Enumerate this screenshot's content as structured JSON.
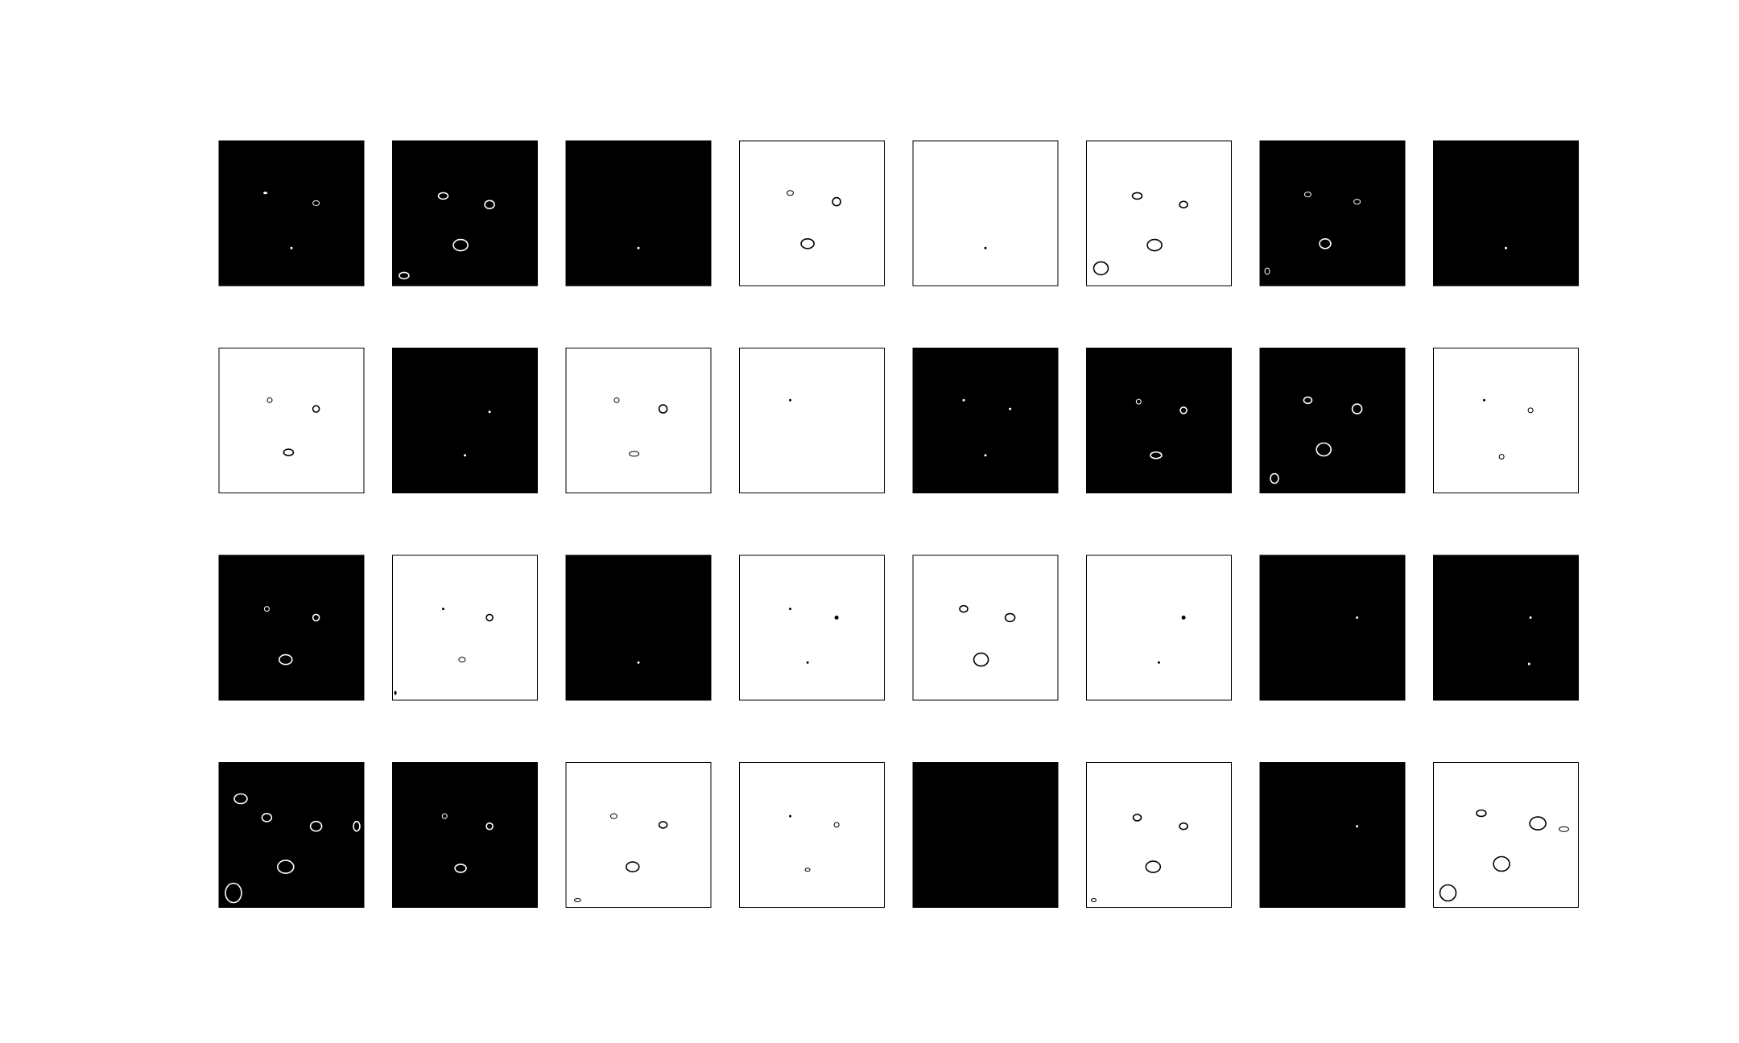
{
  "figure": {
    "rows": 4,
    "cols": 8,
    "colors": {
      "background": "#ffffff",
      "dark_tile": "#000000",
      "light_tile": "#ffffff",
      "frame": "#000000"
    },
    "panels": [
      {
        "bg": "dark",
        "marks": [
          [
            0.32,
            0.36,
            2,
            1
          ],
          [
            0.67,
            0.43,
            4,
            3
          ],
          [
            0.5,
            0.74,
            1,
            1
          ]
        ]
      },
      {
        "bg": "dark",
        "marks": [
          [
            0.35,
            0.38,
            6,
            4
          ],
          [
            0.67,
            0.44,
            6,
            5
          ],
          [
            0.47,
            0.72,
            9,
            7
          ],
          [
            0.08,
            0.93,
            6,
            4
          ]
        ]
      },
      {
        "bg": "dark",
        "marks": [
          [
            0.5,
            0.74,
            1,
            1
          ]
        ]
      },
      {
        "bg": "light",
        "marks": [
          [
            0.35,
            0.36,
            4,
            3
          ],
          [
            0.67,
            0.42,
            5,
            5
          ],
          [
            0.47,
            0.71,
            8,
            6
          ]
        ]
      },
      {
        "bg": "light",
        "marks": [
          [
            0.5,
            0.74,
            1,
            1
          ]
        ]
      },
      {
        "bg": "light",
        "marks": [
          [
            0.35,
            0.38,
            6,
            4
          ],
          [
            0.67,
            0.44,
            5,
            4
          ],
          [
            0.47,
            0.72,
            9,
            7
          ],
          [
            0.1,
            0.88,
            9,
            8
          ]
        ]
      },
      {
        "bg": "dark",
        "marks": [
          [
            0.33,
            0.37,
            4,
            3
          ],
          [
            0.67,
            0.42,
            4,
            3
          ],
          [
            0.45,
            0.71,
            7,
            6
          ],
          [
            0.05,
            0.9,
            3,
            4
          ]
        ]
      },
      {
        "bg": "dark",
        "marks": [
          [
            0.5,
            0.74,
            1,
            1
          ]
        ]
      },
      {
        "bg": "light",
        "marks": [
          [
            0.35,
            0.36,
            3,
            3
          ],
          [
            0.67,
            0.42,
            4,
            4
          ],
          [
            0.48,
            0.72,
            6,
            4
          ]
        ]
      },
      {
        "bg": "dark",
        "marks": [
          [
            0.67,
            0.44,
            1,
            1
          ],
          [
            0.5,
            0.74,
            1,
            1
          ]
        ]
      },
      {
        "bg": "light",
        "marks": [
          [
            0.35,
            0.36,
            3,
            3
          ],
          [
            0.67,
            0.42,
            5,
            5
          ],
          [
            0.47,
            0.73,
            6,
            3
          ]
        ]
      },
      {
        "bg": "light",
        "marks": [
          [
            0.35,
            0.36,
            1,
            1
          ]
        ]
      },
      {
        "bg": "dark",
        "marks": [
          [
            0.35,
            0.36,
            1,
            1
          ],
          [
            0.67,
            0.42,
            1,
            1
          ],
          [
            0.5,
            0.74,
            1,
            1
          ]
        ]
      },
      {
        "bg": "dark",
        "marks": [
          [
            0.36,
            0.37,
            3,
            3
          ],
          [
            0.67,
            0.43,
            4,
            4
          ],
          [
            0.48,
            0.74,
            7,
            4
          ]
        ]
      },
      {
        "bg": "dark",
        "marks": [
          [
            0.33,
            0.36,
            5,
            4
          ],
          [
            0.67,
            0.42,
            6,
            6
          ],
          [
            0.44,
            0.7,
            9,
            8
          ],
          [
            0.1,
            0.9,
            5,
            6
          ]
        ]
      },
      {
        "bg": "light",
        "marks": [
          [
            0.35,
            0.36,
            1,
            1
          ],
          [
            0.67,
            0.43,
            3,
            3
          ],
          [
            0.47,
            0.75,
            3,
            3
          ]
        ]
      },
      {
        "bg": "dark",
        "marks": [
          [
            0.33,
            0.37,
            3,
            3
          ],
          [
            0.67,
            0.43,
            4,
            4
          ],
          [
            0.46,
            0.72,
            8,
            6
          ]
        ]
      },
      {
        "bg": "light",
        "marks": [
          [
            0.35,
            0.37,
            1,
            1
          ],
          [
            0.67,
            0.43,
            4,
            4
          ],
          [
            0.48,
            0.72,
            4,
            3
          ],
          [
            0.02,
            0.95,
            1,
            2
          ]
        ]
      },
      {
        "bg": "dark",
        "marks": [
          [
            0.5,
            0.74,
            1,
            1
          ]
        ]
      },
      {
        "bg": "light",
        "marks": [
          [
            0.35,
            0.37,
            1,
            1
          ],
          [
            0.67,
            0.43,
            2,
            2
          ],
          [
            0.47,
            0.74,
            1,
            1
          ]
        ]
      },
      {
        "bg": "light",
        "marks": [
          [
            0.35,
            0.37,
            5,
            4
          ],
          [
            0.67,
            0.43,
            6,
            5
          ],
          [
            0.47,
            0.72,
            9,
            8
          ]
        ]
      },
      {
        "bg": "light",
        "marks": [
          [
            0.67,
            0.43,
            2,
            2
          ],
          [
            0.5,
            0.74,
            1,
            1
          ]
        ]
      },
      {
        "bg": "dark",
        "marks": [
          [
            0.67,
            0.43,
            1,
            1
          ]
        ]
      },
      {
        "bg": "dark",
        "marks": [
          [
            0.67,
            0.43,
            1,
            1
          ],
          [
            0.66,
            0.75,
            1,
            1
          ]
        ]
      },
      {
        "bg": "dark",
        "marks": [
          [
            0.33,
            0.38,
            6,
            5
          ],
          [
            0.67,
            0.44,
            7,
            6
          ],
          [
            0.46,
            0.72,
            10,
            8
          ],
          [
            0.1,
            0.9,
            10,
            12
          ],
          [
            0.15,
            0.25,
            8,
            6
          ],
          [
            0.95,
            0.44,
            4,
            6
          ]
        ]
      },
      {
        "bg": "dark",
        "marks": [
          [
            0.36,
            0.37,
            3,
            3
          ],
          [
            0.67,
            0.44,
            4,
            4
          ],
          [
            0.47,
            0.73,
            7,
            5
          ]
        ]
      },
      {
        "bg": "light",
        "marks": [
          [
            0.33,
            0.37,
            4,
            3
          ],
          [
            0.67,
            0.43,
            5,
            4
          ],
          [
            0.46,
            0.72,
            8,
            6
          ],
          [
            0.08,
            0.95,
            4,
            2
          ]
        ]
      },
      {
        "bg": "light",
        "marks": [
          [
            0.35,
            0.37,
            1,
            1
          ],
          [
            0.67,
            0.43,
            3,
            3
          ],
          [
            0.47,
            0.74,
            3,
            2
          ]
        ]
      },
      {
        "bg": "dark",
        "marks": []
      },
      {
        "bg": "light",
        "marks": [
          [
            0.35,
            0.38,
            5,
            4
          ],
          [
            0.67,
            0.44,
            5,
            4
          ],
          [
            0.46,
            0.72,
            9,
            7
          ],
          [
            0.05,
            0.95,
            3,
            2
          ]
        ]
      },
      {
        "bg": "dark",
        "marks": [
          [
            0.67,
            0.44,
            1,
            1
          ]
        ]
      },
      {
        "bg": "light",
        "marks": [
          [
            0.33,
            0.35,
            6,
            4
          ],
          [
            0.72,
            0.42,
            10,
            8
          ],
          [
            0.47,
            0.7,
            10,
            9
          ],
          [
            0.1,
            0.9,
            10,
            10
          ],
          [
            0.9,
            0.46,
            6,
            3
          ]
        ]
      }
    ]
  }
}
